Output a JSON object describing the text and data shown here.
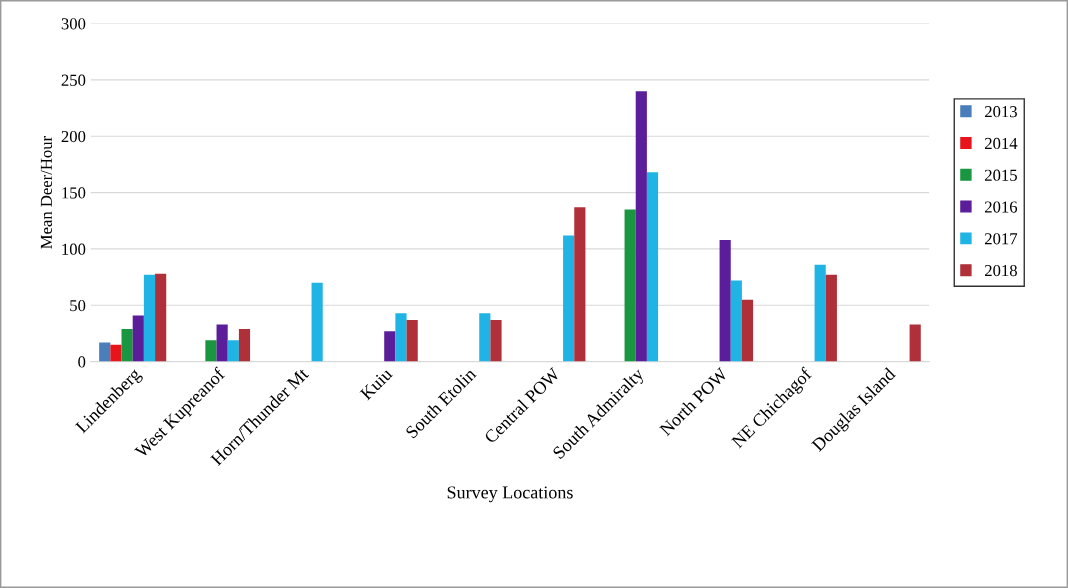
{
  "chart_data": {
    "type": "bar",
    "xlabel": "Survey Locations",
    "ylabel": "Mean Deer/Hour",
    "categories": [
      "Lindenberg",
      "West Kupreanof",
      "Horn/Thunder Mt",
      "Kuiu",
      "South Etolin",
      "Central POW",
      "South Admiralty",
      "North POW",
      "NE Chichagof",
      "Douglas Island"
    ],
    "series": [
      {
        "name": "2013",
        "color": "#4a7ebb",
        "values": [
          17,
          null,
          null,
          null,
          null,
          null,
          null,
          null,
          null,
          null
        ]
      },
      {
        "name": "2014",
        "color": "#e8141c",
        "values": [
          15,
          null,
          null,
          null,
          null,
          null,
          null,
          null,
          null,
          null
        ]
      },
      {
        "name": "2015",
        "color": "#1a9641",
        "values": [
          29,
          19,
          null,
          null,
          null,
          null,
          135,
          null,
          null,
          null
        ]
      },
      {
        "name": "2016",
        "color": "#5b1d9a",
        "values": [
          41,
          33,
          null,
          27,
          null,
          null,
          240,
          108,
          null,
          null
        ]
      },
      {
        "name": "2017",
        "color": "#1fb4e4",
        "values": [
          77,
          19,
          70,
          43,
          43,
          112,
          168,
          72,
          86,
          null
        ]
      },
      {
        "name": "2018",
        "color": "#b0303a",
        "values": [
          78,
          29,
          null,
          37,
          37,
          137,
          null,
          55,
          77,
          33
        ]
      }
    ],
    "ylim": [
      0,
      300
    ],
    "yticks": [
      0,
      50,
      100,
      150,
      200,
      250,
      300
    ],
    "grid": "y",
    "legend": "right"
  }
}
